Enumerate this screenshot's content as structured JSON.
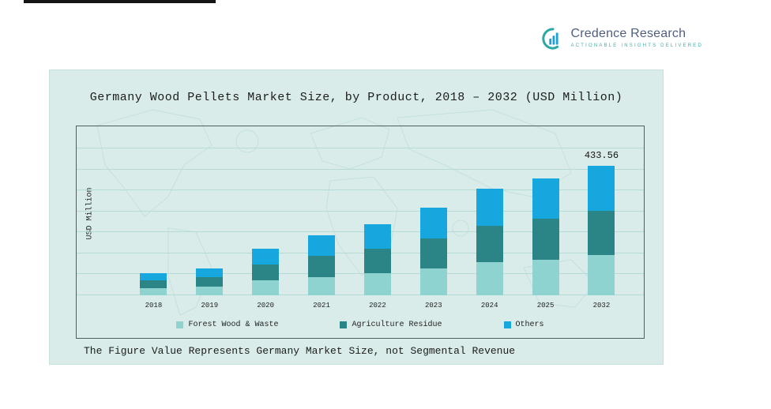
{
  "page": {
    "note": "The Figure Value Represents Germany Market Size, not Segmental Revenue"
  },
  "logo": {
    "name": "Credence Research",
    "tagline": "Actionable Insights Delivered"
  },
  "colors": {
    "panel_bg": "#d9ecea",
    "forest": "#8ed3cf",
    "agriculture": "#2b8486",
    "others": "#16a7de"
  },
  "chart_data": {
    "type": "bar",
    "stacked": true,
    "title": "Germany Wood Pellets Market Size, by Product, 2018 – 2032 (USD Million)",
    "xlabel": "",
    "ylabel": "USD Million",
    "ylim": [
      0,
      460
    ],
    "grid": true,
    "legend_position": "bottom",
    "categories": [
      "2018",
      "2019",
      "2020",
      "2021",
      "2022",
      "2023",
      "2024",
      "2025",
      "2032"
    ],
    "series": [
      {
        "name": "Forest Wood & Waste",
        "color": "#8ed3cf",
        "values": [
          25,
          30,
          50,
          62,
          74,
          90,
          110,
          120,
          133.56
        ]
      },
      {
        "name": "Agriculture Residue",
        "color": "#2b8486",
        "values": [
          25,
          30,
          53,
          69,
          82,
          101,
          123,
          136,
          150
        ]
      },
      {
        "name": "Others",
        "color": "#16a7de",
        "values": [
          25,
          30,
          53,
          69,
          82,
          102,
          123,
          136,
          150
        ]
      }
    ],
    "totals": [
      75,
      90,
      156,
      200,
      238,
      293,
      356,
      392,
      433.56
    ],
    "top_label": {
      "category": "2032",
      "text": "433.56"
    }
  }
}
